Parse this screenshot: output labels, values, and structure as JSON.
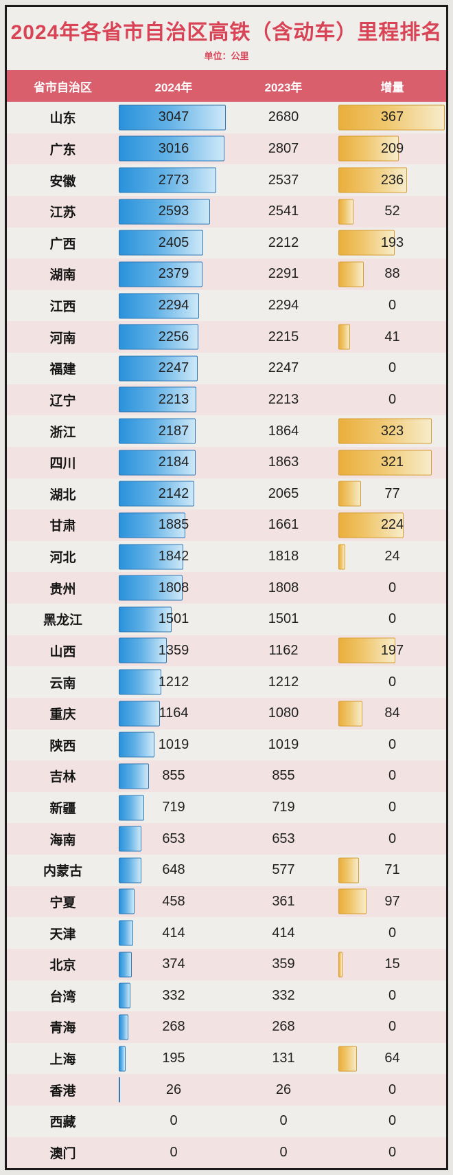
{
  "title": "2024年各省市自治区高铁（含动车）里程排名",
  "subtitle": "单位：公里",
  "columns": [
    "省市自治区",
    "2024年",
    "2023年",
    "增量"
  ],
  "rows": [
    {
      "name": "山东",
      "y2024": 3047,
      "y2023": 2680,
      "delta": 367
    },
    {
      "name": "广东",
      "y2024": 3016,
      "y2023": 2807,
      "delta": 209
    },
    {
      "name": "安徽",
      "y2024": 2773,
      "y2023": 2537,
      "delta": 236
    },
    {
      "name": "江苏",
      "y2024": 2593,
      "y2023": 2541,
      "delta": 52
    },
    {
      "name": "广西",
      "y2024": 2405,
      "y2023": 2212,
      "delta": 193
    },
    {
      "name": "湖南",
      "y2024": 2379,
      "y2023": 2291,
      "delta": 88
    },
    {
      "name": "江西",
      "y2024": 2294,
      "y2023": 2294,
      "delta": 0
    },
    {
      "name": "河南",
      "y2024": 2256,
      "y2023": 2215,
      "delta": 41
    },
    {
      "name": "福建",
      "y2024": 2247,
      "y2023": 2247,
      "delta": 0
    },
    {
      "name": "辽宁",
      "y2024": 2213,
      "y2023": 2213,
      "delta": 0
    },
    {
      "name": "浙江",
      "y2024": 2187,
      "y2023": 1864,
      "delta": 323
    },
    {
      "name": "四川",
      "y2024": 2184,
      "y2023": 1863,
      "delta": 321
    },
    {
      "name": "湖北",
      "y2024": 2142,
      "y2023": 2065,
      "delta": 77
    },
    {
      "name": "甘肃",
      "y2024": 1885,
      "y2023": 1661,
      "delta": 224
    },
    {
      "name": "河北",
      "y2024": 1842,
      "y2023": 1818,
      "delta": 24
    },
    {
      "name": "贵州",
      "y2024": 1808,
      "y2023": 1808,
      "delta": 0
    },
    {
      "name": "黑龙江",
      "y2024": 1501,
      "y2023": 1501,
      "delta": 0
    },
    {
      "name": "山西",
      "y2024": 1359,
      "y2023": 1162,
      "delta": 197
    },
    {
      "name": "云南",
      "y2024": 1212,
      "y2023": 1212,
      "delta": 0
    },
    {
      "name": "重庆",
      "y2024": 1164,
      "y2023": 1080,
      "delta": 84
    },
    {
      "name": "陕西",
      "y2024": 1019,
      "y2023": 1019,
      "delta": 0
    },
    {
      "name": "吉林",
      "y2024": 855,
      "y2023": 855,
      "delta": 0
    },
    {
      "name": "新疆",
      "y2024": 719,
      "y2023": 719,
      "delta": 0
    },
    {
      "name": "海南",
      "y2024": 653,
      "y2023": 653,
      "delta": 0
    },
    {
      "name": "内蒙古",
      "y2024": 648,
      "y2023": 577,
      "delta": 71
    },
    {
      "name": "宁夏",
      "y2024": 458,
      "y2023": 361,
      "delta": 97
    },
    {
      "name": "天津",
      "y2024": 414,
      "y2023": 414,
      "delta": 0
    },
    {
      "name": "北京",
      "y2024": 374,
      "y2023": 359,
      "delta": 15
    },
    {
      "name": "台湾",
      "y2024": 332,
      "y2023": 332,
      "delta": 0
    },
    {
      "name": "青海",
      "y2024": 268,
      "y2023": 268,
      "delta": 0
    },
    {
      "name": "上海",
      "y2024": 195,
      "y2023": 131,
      "delta": 64
    },
    {
      "name": "香港",
      "y2024": 26,
      "y2023": 26,
      "delta": 0
    },
    {
      "name": "西藏",
      "y2024": 0,
      "y2023": 0,
      "delta": 0
    },
    {
      "name": "澳门",
      "y2024": 0,
      "y2023": 0,
      "delta": 0
    }
  ],
  "chart_data": {
    "type": "bar",
    "title": "2024年各省市自治区高铁（含动车）里程排名",
    "unit": "公里",
    "categories": [
      "山东",
      "广东",
      "安徽",
      "江苏",
      "广西",
      "湖南",
      "江西",
      "河南",
      "福建",
      "辽宁",
      "浙江",
      "四川",
      "湖北",
      "甘肃",
      "河北",
      "贵州",
      "黑龙江",
      "山西",
      "云南",
      "重庆",
      "陕西",
      "吉林",
      "新疆",
      "海南",
      "内蒙古",
      "宁夏",
      "天津",
      "北京",
      "台湾",
      "青海",
      "上海",
      "香港",
      "西藏",
      "澳门"
    ],
    "series": [
      {
        "name": "2024年",
        "values": [
          3047,
          3016,
          2773,
          2593,
          2405,
          2379,
          2294,
          2256,
          2247,
          2213,
          2187,
          2184,
          2142,
          1885,
          1842,
          1808,
          1501,
          1359,
          1212,
          1164,
          1019,
          855,
          719,
          653,
          648,
          458,
          414,
          374,
          332,
          268,
          195,
          26,
          0,
          0
        ]
      },
      {
        "name": "2023年",
        "values": [
          2680,
          2807,
          2537,
          2541,
          2212,
          2291,
          2294,
          2215,
          2247,
          2213,
          1864,
          1863,
          2065,
          1661,
          1818,
          1808,
          1501,
          1162,
          1212,
          1080,
          1019,
          855,
          719,
          653,
          577,
          361,
          414,
          359,
          332,
          268,
          131,
          26,
          0,
          0
        ]
      },
      {
        "name": "增量",
        "values": [
          367,
          209,
          236,
          52,
          193,
          88,
          0,
          41,
          0,
          0,
          323,
          321,
          77,
          224,
          24,
          0,
          0,
          197,
          0,
          84,
          0,
          0,
          0,
          0,
          71,
          97,
          0,
          15,
          0,
          0,
          64,
          0,
          0,
          0
        ]
      }
    ],
    "bar_scale": {
      "col_2024_axis_max": 3047,
      "col_delta_axis_max": 367
    },
    "legend_position": "none",
    "grid": false
  },
  "colors": {
    "title_red": "#d84356",
    "header_bg": "#d95f6d",
    "header_text": "#ffffff",
    "row_plain": "#f0eeeb",
    "row_pink": "#f2e3e2",
    "blue_bar_start": "#2a92db",
    "blue_bar_end": "#cde8f8",
    "blue_bar_border": "#2f78b5",
    "orange_bar_start": "#eaae3c",
    "orange_bar_end": "#f7ecca",
    "orange_bar_border": "#d79c33",
    "frame_border": "#1b1b1b",
    "page_bg": "#e9e7e4"
  }
}
